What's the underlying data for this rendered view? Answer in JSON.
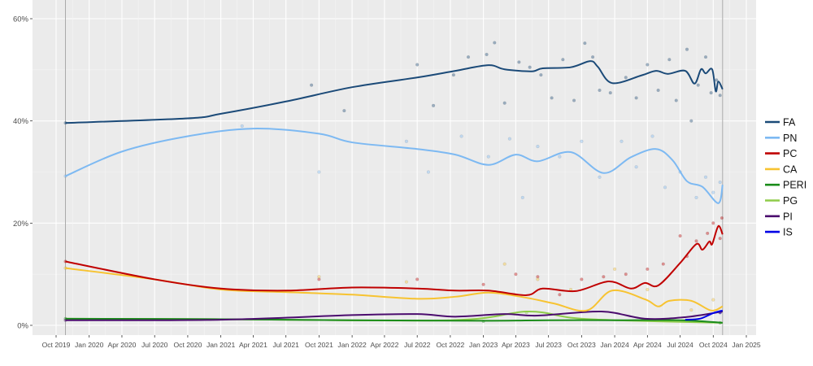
{
  "chart_data": {
    "type": "line",
    "title": "",
    "xlabel": "",
    "ylabel": "",
    "ylim": [
      0,
      60
    ],
    "xlim": [
      "2019-10-01",
      "2025-01-01"
    ],
    "grid": true,
    "legend_position": "right",
    "y_ticks": [
      0,
      20,
      40,
      60
    ],
    "y_tick_labels": [
      "0%",
      "20%",
      "40%",
      "60%"
    ],
    "x_ticks": [
      "2019-10-01",
      "2020-01-01",
      "2020-04-01",
      "2020-07-01",
      "2020-10-01",
      "2021-01-01",
      "2021-04-01",
      "2021-07-01",
      "2021-10-01",
      "2022-01-01",
      "2022-04-01",
      "2022-07-01",
      "2022-10-01",
      "2023-01-01",
      "2023-04-01",
      "2023-07-01",
      "2023-10-01",
      "2024-01-01",
      "2024-04-01",
      "2024-07-01",
      "2024-10-01",
      "2025-01-01"
    ],
    "x_tick_labels": [
      "Oct 2019",
      "Jan 2020",
      "Apr 2020",
      "Jul 2020",
      "Oct 2020",
      "Jan 2021",
      "Apr 2021",
      "Jul 2021",
      "Oct 2021",
      "Jan 2022",
      "Apr 2022",
      "Jul 2022",
      "Oct 2022",
      "Jan 2023",
      "Apr 2023",
      "Jul 2023",
      "Oct 2023",
      "Jan 2024",
      "Apr 2024",
      "Jul 2024",
      "Oct 2024",
      "Jan 2025"
    ],
    "reference_lines": [
      "2019-10-27",
      "2024-10-27"
    ],
    "series": [
      {
        "name": "FA",
        "color": "#1b4a78",
        "trend": [
          [
            "2019-10-27",
            39.6
          ],
          [
            "2020-10-01",
            40.5
          ],
          [
            "2021-01-01",
            41.4
          ],
          [
            "2021-07-01",
            43.8
          ],
          [
            "2022-01-01",
            46.6
          ],
          [
            "2022-07-01",
            48.5
          ],
          [
            "2022-10-15",
            49.8
          ],
          [
            "2023-01-15",
            50.9
          ],
          [
            "2023-03-01",
            50.1
          ],
          [
            "2023-05-15",
            49.7
          ],
          [
            "2023-06-15",
            50.3
          ],
          [
            "2023-09-01",
            50.5
          ],
          [
            "2023-10-25",
            51.7
          ],
          [
            "2023-11-15",
            50.6
          ],
          [
            "2023-12-25",
            47.4
          ],
          [
            "2024-03-15",
            48.9
          ],
          [
            "2024-04-25",
            49.8
          ],
          [
            "2024-05-28",
            49.2
          ],
          [
            "2024-07-15",
            49.8
          ],
          [
            "2024-08-10",
            47.3
          ],
          [
            "2024-08-28",
            50.1
          ],
          [
            "2024-09-10",
            49.3
          ],
          [
            "2024-09-28",
            50.1
          ],
          [
            "2024-10-08",
            45.8
          ],
          [
            "2024-10-15",
            47.7
          ],
          [
            "2024-10-27",
            46.2
          ]
        ],
        "points": [
          [
            "2019-10-27",
            39.6
          ],
          [
            "2021-09-10",
            47.0
          ],
          [
            "2021-12-10",
            42.0
          ],
          [
            "2022-07-01",
            51.0
          ],
          [
            "2022-08-15",
            43.0
          ],
          [
            "2022-10-10",
            49.0
          ],
          [
            "2022-11-20",
            52.5
          ],
          [
            "2023-01-10",
            53.0
          ],
          [
            "2023-02-01",
            55.3
          ],
          [
            "2023-03-01",
            43.5
          ],
          [
            "2023-04-10",
            51.5
          ],
          [
            "2023-05-10",
            50.5
          ],
          [
            "2023-06-10",
            49.0
          ],
          [
            "2023-07-10",
            44.5
          ],
          [
            "2023-08-10",
            52.0
          ],
          [
            "2023-09-10",
            44.0
          ],
          [
            "2023-10-10",
            55.2
          ],
          [
            "2023-11-01",
            52.5
          ],
          [
            "2023-11-20",
            46.0
          ],
          [
            "2023-12-20",
            45.5
          ],
          [
            "2024-02-01",
            48.5
          ],
          [
            "2024-03-01",
            44.5
          ],
          [
            "2024-04-01",
            51.0
          ],
          [
            "2024-05-01",
            46.0
          ],
          [
            "2024-06-01",
            52.0
          ],
          [
            "2024-06-20",
            44.0
          ],
          [
            "2024-07-20",
            54.0
          ],
          [
            "2024-08-01",
            40.0
          ],
          [
            "2024-08-20",
            47.0
          ],
          [
            "2024-09-10",
            52.5
          ],
          [
            "2024-09-25",
            45.5
          ],
          [
            "2024-10-10",
            48.0
          ],
          [
            "2024-10-20",
            45.0
          ]
        ]
      },
      {
        "name": "PN",
        "color": "#7db9f2",
        "trend": [
          [
            "2019-10-27",
            29.2
          ],
          [
            "2020-04-01",
            34.0
          ],
          [
            "2020-10-01",
            37.0
          ],
          [
            "2021-04-01",
            38.5
          ],
          [
            "2021-10-01",
            37.5
          ],
          [
            "2022-01-01",
            35.8
          ],
          [
            "2022-07-01",
            34.5
          ],
          [
            "2022-10-15",
            33.4
          ],
          [
            "2023-01-15",
            31.4
          ],
          [
            "2023-04-01",
            33.4
          ],
          [
            "2023-06-01",
            32.1
          ],
          [
            "2023-09-01",
            33.9
          ],
          [
            "2023-12-01",
            29.8
          ],
          [
            "2024-02-15",
            32.9
          ],
          [
            "2024-04-25",
            34.5
          ],
          [
            "2024-06-10",
            32.3
          ],
          [
            "2024-07-20",
            28.2
          ],
          [
            "2024-09-01",
            27.1
          ],
          [
            "2024-10-15",
            23.9
          ],
          [
            "2024-10-27",
            27.5
          ]
        ],
        "points": [
          [
            "2019-10-27",
            29.2
          ],
          [
            "2021-03-01",
            39.0
          ],
          [
            "2021-10-01",
            30.0
          ],
          [
            "2022-06-01",
            36.0
          ],
          [
            "2022-08-01",
            30.0
          ],
          [
            "2022-11-01",
            37.0
          ],
          [
            "2023-01-15",
            33.0
          ],
          [
            "2023-03-15",
            36.5
          ],
          [
            "2023-04-20",
            25.0
          ],
          [
            "2023-06-01",
            35.0
          ],
          [
            "2023-08-01",
            33.0
          ],
          [
            "2023-10-01",
            36.0
          ],
          [
            "2023-11-20",
            29.0
          ],
          [
            "2024-01-20",
            36.0
          ],
          [
            "2024-03-01",
            31.0
          ],
          [
            "2024-04-15",
            37.0
          ],
          [
            "2024-05-20",
            27.0
          ],
          [
            "2024-07-01",
            30.0
          ],
          [
            "2024-08-15",
            25.0
          ],
          [
            "2024-09-10",
            29.0
          ],
          [
            "2024-10-01",
            26.0
          ],
          [
            "2024-10-20",
            28.0
          ]
        ]
      },
      {
        "name": "PC",
        "color": "#c00000",
        "trend": [
          [
            "2019-10-27",
            12.5
          ],
          [
            "2020-07-01",
            9.0
          ],
          [
            "2021-01-01",
            7.2
          ],
          [
            "2021-07-01",
            6.8
          ],
          [
            "2022-01-01",
            7.4
          ],
          [
            "2022-07-01",
            7.2
          ],
          [
            "2022-10-15",
            6.8
          ],
          [
            "2023-01-15",
            6.8
          ],
          [
            "2023-05-01",
            5.9
          ],
          [
            "2023-06-15",
            7.2
          ],
          [
            "2023-09-15",
            6.7
          ],
          [
            "2023-12-15",
            8.6
          ],
          [
            "2024-02-15",
            7.2
          ],
          [
            "2024-03-25",
            8.3
          ],
          [
            "2024-05-01",
            7.8
          ],
          [
            "2024-07-01",
            12.2
          ],
          [
            "2024-08-15",
            15.9
          ],
          [
            "2024-09-01",
            14.8
          ],
          [
            "2024-09-20",
            16.4
          ],
          [
            "2024-09-28",
            15.9
          ],
          [
            "2024-10-15",
            19.4
          ],
          [
            "2024-10-27",
            17.8
          ]
        ],
        "points": [
          [
            "2019-10-27",
            12.5
          ],
          [
            "2021-10-01",
            9.0
          ],
          [
            "2022-07-01",
            9.0
          ],
          [
            "2023-01-01",
            8.0
          ],
          [
            "2023-04-01",
            10.0
          ],
          [
            "2023-06-01",
            9.5
          ],
          [
            "2023-08-01",
            6.0
          ],
          [
            "2023-10-01",
            9.0
          ],
          [
            "2023-12-01",
            9.5
          ],
          [
            "2024-02-01",
            10.0
          ],
          [
            "2024-04-01",
            11.0
          ],
          [
            "2024-05-15",
            12.0
          ],
          [
            "2024-07-01",
            17.5
          ],
          [
            "2024-07-20",
            13.5
          ],
          [
            "2024-08-15",
            16.5
          ],
          [
            "2024-09-15",
            18.0
          ],
          [
            "2024-10-01",
            20.0
          ],
          [
            "2024-10-20",
            17.0
          ],
          [
            "2024-10-25",
            21.0
          ]
        ]
      },
      {
        "name": "CA",
        "color": "#f7c331",
        "trend": [
          [
            "2019-10-27",
            11.2
          ],
          [
            "2020-07-01",
            9.0
          ],
          [
            "2021-01-01",
            7.0
          ],
          [
            "2021-07-01",
            6.5
          ],
          [
            "2022-01-01",
            6.0
          ],
          [
            "2022-07-01",
            5.2
          ],
          [
            "2022-10-15",
            5.6
          ],
          [
            "2023-01-15",
            6.4
          ],
          [
            "2023-04-15",
            5.6
          ],
          [
            "2023-07-15",
            4.3
          ],
          [
            "2023-10-15",
            2.9
          ],
          [
            "2023-12-25",
            6.8
          ],
          [
            "2024-03-25",
            5.1
          ],
          [
            "2024-05-01",
            3.7
          ],
          [
            "2024-06-01",
            4.8
          ],
          [
            "2024-08-01",
            4.8
          ],
          [
            "2024-09-25",
            2.9
          ],
          [
            "2024-10-27",
            3.7
          ]
        ],
        "points": [
          [
            "2019-10-27",
            11.2
          ],
          [
            "2021-10-01",
            9.5
          ],
          [
            "2022-06-01",
            8.5
          ],
          [
            "2023-03-01",
            12.0
          ],
          [
            "2023-06-01",
            9.0
          ],
          [
            "2023-09-01",
            7.0
          ],
          [
            "2024-01-01",
            11.0
          ],
          [
            "2024-04-01",
            7.0
          ],
          [
            "2024-08-01",
            3.0
          ],
          [
            "2024-10-01",
            5.0
          ]
        ]
      },
      {
        "name": "PERI",
        "color": "#1a8c1a",
        "trend": [
          [
            "2019-10-27",
            1.3
          ],
          [
            "2021-01-01",
            1.2
          ],
          [
            "2022-01-01",
            1.0
          ],
          [
            "2023-01-01",
            0.9
          ],
          [
            "2023-07-01",
            1.0
          ],
          [
            "2024-01-01",
            1.0
          ],
          [
            "2024-07-01",
            1.0
          ],
          [
            "2024-10-27",
            0.5
          ]
        ],
        "points": [
          [
            "2019-10-27",
            1.3
          ],
          [
            "2023-01-01",
            0.8
          ],
          [
            "2024-10-20",
            0.5
          ]
        ]
      },
      {
        "name": "PG",
        "color": "#8fcc4a",
        "trend": [
          [
            "2019-10-27",
            1.3
          ],
          [
            "2021-01-01",
            1.2
          ],
          [
            "2022-10-01",
            1.0
          ],
          [
            "2023-05-01",
            2.7
          ],
          [
            "2023-09-01",
            1.5
          ],
          [
            "2024-01-01",
            1.0
          ],
          [
            "2024-10-27",
            0.5
          ]
        ],
        "points": [
          [
            "2023-05-01",
            2.5
          ]
        ]
      },
      {
        "name": "PI",
        "color": "#4b0c6e",
        "trend": [
          [
            "2019-10-27",
            1.0
          ],
          [
            "2021-01-01",
            1.1
          ],
          [
            "2022-01-01",
            2.0
          ],
          [
            "2022-07-01",
            2.2
          ],
          [
            "2022-10-15",
            1.7
          ],
          [
            "2023-03-01",
            2.2
          ],
          [
            "2023-06-01",
            1.9
          ],
          [
            "2023-11-25",
            2.7
          ],
          [
            "2024-03-25",
            1.3
          ],
          [
            "2024-07-15",
            1.6
          ],
          [
            "2024-10-27",
            2.7
          ]
        ],
        "points": [
          [
            "2019-10-27",
            1.0
          ],
          [
            "2024-10-20",
            2.5
          ]
        ]
      },
      {
        "name": "IS",
        "color": "#0000e6",
        "trend": [
          [
            "2024-07-15",
            1.1
          ],
          [
            "2024-08-25",
            1.3
          ],
          [
            "2024-10-01",
            2.4
          ],
          [
            "2024-10-27",
            2.9
          ]
        ],
        "points": [
          [
            "2024-10-20",
            2.5
          ]
        ]
      }
    ]
  }
}
